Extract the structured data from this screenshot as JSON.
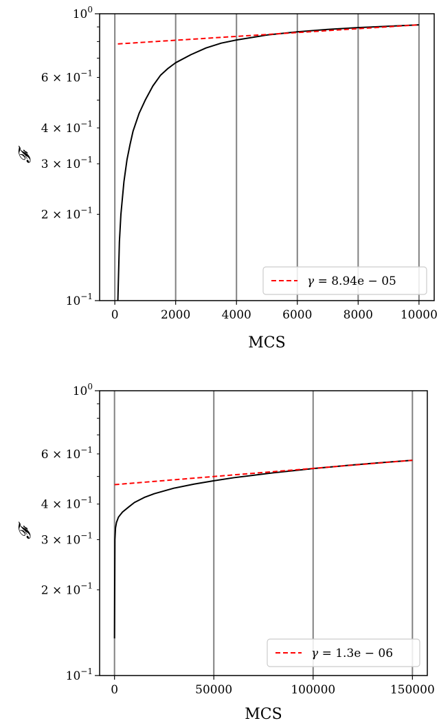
{
  "chart_data": [
    {
      "type": "line",
      "xlabel": "MCS",
      "ylabel": "𝓕",
      "y_scale": "log",
      "xlim": [
        -500,
        10500
      ],
      "ylim": [
        0.1,
        1.0
      ],
      "x_ticks": [
        0,
        2000,
        4000,
        6000,
        8000,
        10000
      ],
      "x_tick_labels": [
        "0",
        "2000",
        "4000",
        "6000",
        "8000",
        "10000"
      ],
      "y_major_ticks": [
        {
          "value": 1.0,
          "base": "10",
          "exp": "0"
        },
        {
          "value": 0.1,
          "base": "10",
          "exp": "−1"
        }
      ],
      "y_minor_labeled_ticks": [
        {
          "value": 0.6,
          "base": "6 × 10",
          "exp": "−1"
        },
        {
          "value": 0.4,
          "base": "4 × 10",
          "exp": "−1"
        },
        {
          "value": 0.3,
          "base": "3 × 10",
          "exp": "−1"
        },
        {
          "value": 0.2,
          "base": "2 × 10",
          "exp": "−1"
        }
      ],
      "y_minor_unlabeled_ticks": [
        0.5,
        0.7,
        0.8,
        0.9
      ],
      "vertical_lines_x": [
        0,
        2000,
        4000,
        6000,
        8000,
        10000
      ],
      "vertical_line_color": "#808080",
      "legend_location": "lower-right",
      "series": [
        {
          "style": "solid",
          "color": "#000000",
          "x": [
            100,
            150,
            200,
            300,
            400,
            500,
            600,
            800,
            1000,
            1250,
            1500,
            1750,
            2000,
            2500,
            3000,
            3500,
            4000,
            5000,
            6000,
            7000,
            8000,
            9000,
            10000
          ],
          "y": [
            0.1,
            0.16,
            0.2,
            0.26,
            0.31,
            0.35,
            0.39,
            0.45,
            0.5,
            0.56,
            0.61,
            0.645,
            0.675,
            0.72,
            0.76,
            0.79,
            0.81,
            0.843,
            0.865,
            0.882,
            0.895,
            0.905,
            0.915
          ]
        },
        {
          "style": "dashed",
          "color": "#ff0000",
          "legend_prefix": "γ",
          "legend_value": " = 8.94e − 05",
          "x": [
            100,
            10000
          ],
          "y": [
            0.785,
            0.915
          ]
        }
      ]
    },
    {
      "type": "line",
      "xlabel": "MCS",
      "ylabel": "𝓕",
      "y_scale": "log",
      "xlim": [
        -7500,
        157500
      ],
      "ylim": [
        0.1,
        1.0
      ],
      "x_ticks": [
        0,
        50000,
        100000,
        150000
      ],
      "x_tick_labels": [
        "0",
        "50000",
        "100000",
        "150000"
      ],
      "y_major_ticks": [
        {
          "value": 1.0,
          "base": "10",
          "exp": "0"
        },
        {
          "value": 0.1,
          "base": "10",
          "exp": "−1"
        }
      ],
      "y_minor_labeled_ticks": [
        {
          "value": 0.6,
          "base": "6 × 10",
          "exp": "−1"
        },
        {
          "value": 0.4,
          "base": "4 × 10",
          "exp": "−1"
        },
        {
          "value": 0.3,
          "base": "3 × 10",
          "exp": "−1"
        },
        {
          "value": 0.2,
          "base": "2 × 10",
          "exp": "−1"
        }
      ],
      "y_minor_unlabeled_ticks": [
        0.5,
        0.7,
        0.8,
        0.9
      ],
      "vertical_lines_x": [
        0,
        50000,
        100000,
        150000
      ],
      "vertical_line_color": "#808080",
      "legend_location": "lower-right",
      "series": [
        {
          "style": "solid",
          "color": "#000000",
          "x": [
            0,
            200,
            500,
            1000,
            2000,
            4000,
            7000,
            10000,
            15000,
            20000,
            30000,
            40000,
            50000,
            60000,
            70000,
            80000,
            90000,
            100000,
            110000,
            120000,
            130000,
            140000,
            150000
          ],
          "y": [
            0.135,
            0.3,
            0.33,
            0.345,
            0.36,
            0.375,
            0.39,
            0.405,
            0.422,
            0.435,
            0.455,
            0.47,
            0.483,
            0.495,
            0.505,
            0.515,
            0.524,
            0.533,
            0.541,
            0.549,
            0.556,
            0.563,
            0.57
          ]
        },
        {
          "style": "dashed",
          "color": "#ff0000",
          "legend_prefix": "γ",
          "legend_value": " = 1.3e − 06",
          "x": [
            0,
            150000
          ],
          "y": [
            0.468,
            0.57
          ]
        }
      ]
    }
  ]
}
